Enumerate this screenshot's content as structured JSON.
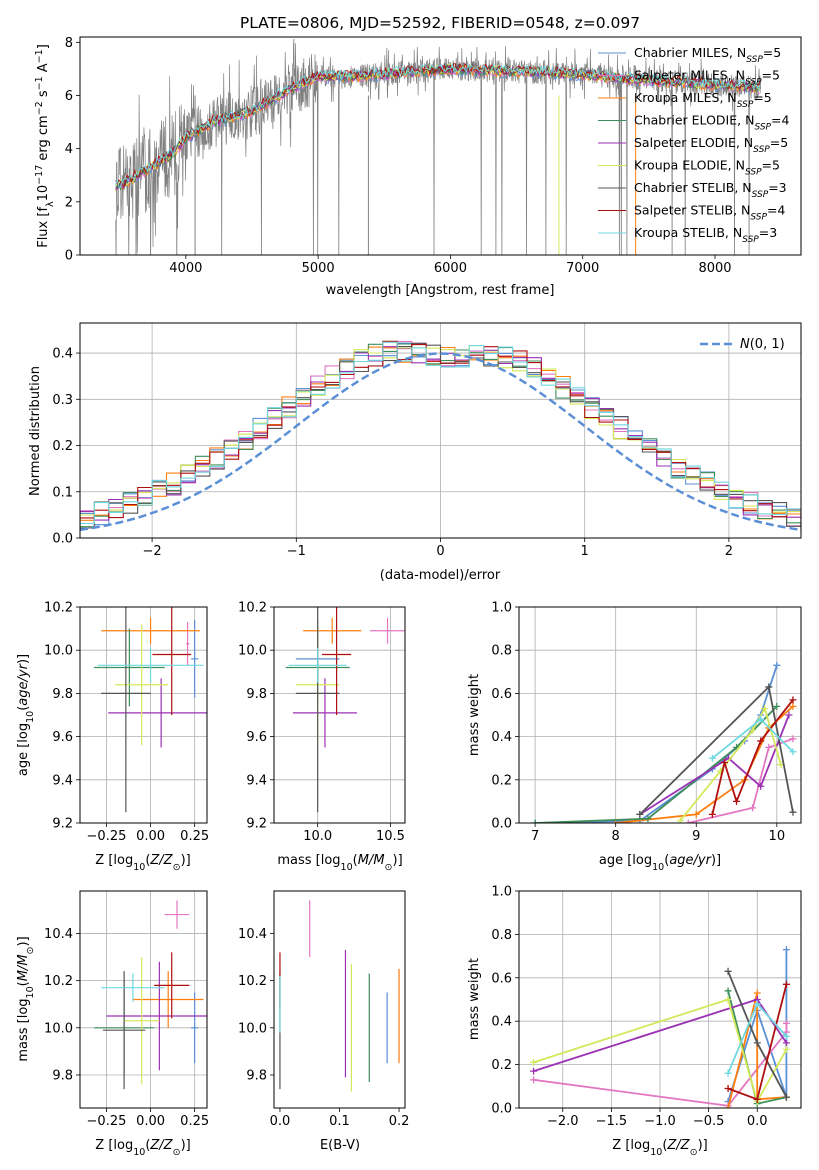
{
  "figure_title": "PLATE=0806, MJD=52592, FIBERID=0548, z=0.097",
  "colors": {
    "Chabrier MILES": "#5b8fd6",
    "Salpeter MILES": "#e377c2",
    "Kroupa MILES": "#ff7f0e",
    "Chabrier ELODIE": "#3f8f5b",
    "Salpeter ELODIE": "#9b30b5",
    "Kroupa ELODIE": "#d4e85a",
    "Chabrier STELIB": "#555555",
    "Salpeter STELIB": "#b00f0f",
    "Kroupa STELIB": "#6fd8e0"
  },
  "chart_data": [
    {
      "id": "spectrum",
      "type": "line",
      "title": "PLATE=0806, MJD=52592, FIBERID=0548, z=0.097",
      "xlabel": "wavelength [Angstrom, rest frame]",
      "ylabel": "Flux [f_λ 10^-17 erg cm^-2 s^-1 A^-1]",
      "xlim": [
        3200,
        8650
      ],
      "ylim": [
        0,
        8.2
      ],
      "xticks": [
        4000,
        5000,
        6000,
        7000,
        8000
      ],
      "yticks": [
        0,
        2,
        4,
        6,
        8
      ],
      "grid": false,
      "legend_position": "right",
      "legend": [
        "Chabrier MILES, N_SSP=5",
        "Salpeter MILES, N_SSP=5",
        "Kroupa MILES, N_SSP=5",
        "Chabrier ELODIE, N_SSP=4",
        "Salpeter ELODIE, N_SSP=5",
        "Kroupa ELODIE, N_SSP=5",
        "Chabrier STELIB, N_SSP=3",
        "Salpeter STELIB, N_SSP=4",
        "Kroupa STELIB, N_SSP=3"
      ],
      "model_curve": {
        "x": [
          3500,
          3700,
          3900,
          4000,
          4200,
          4500,
          4700,
          4900,
          5000,
          5200,
          5500,
          6000,
          6500,
          7000,
          7400,
          8000,
          8350
        ],
        "y": [
          2.6,
          3.2,
          3.8,
          4.4,
          5.0,
          5.4,
          6.0,
          6.5,
          6.7,
          6.7,
          6.8,
          7.0,
          6.9,
          6.8,
          6.6,
          6.4,
          6.3
        ]
      }
    },
    {
      "id": "residuals",
      "type": "line",
      "xlabel": "(data-model)/error",
      "ylabel": "Normed distribution",
      "xlim": [
        -2.5,
        2.5
      ],
      "ylim": [
        0,
        0.465
      ],
      "xticks": [
        -2,
        -1,
        0,
        1,
        2
      ],
      "xtick_labels": [
        "−2",
        "−1",
        "0",
        "1",
        "2"
      ],
      "yticks": [
        0,
        0.1,
        0.2,
        0.3,
        0.4
      ],
      "ytick_labels": [
        "0.0",
        "0.1",
        "0.2",
        "0.3",
        "0.4"
      ],
      "grid": true,
      "legend_position": "top-right",
      "reference": "N(0,1)",
      "bin_width": 0.1
    },
    {
      "id": "age_vs_Z",
      "type": "scatter",
      "xlabel": "Z [log10(Z/Z_sun)]",
      "ylabel": "age [log10(age/yr)]",
      "xlim": [
        -0.4,
        0.32
      ],
      "ylim": [
        9.2,
        10.2
      ],
      "xticks": [
        -0.25,
        0.0,
        0.25
      ],
      "xtick_labels": [
        "−0.25",
        "0.00",
        "0.25"
      ],
      "yticks": [
        9.2,
        9.4,
        9.6,
        9.8,
        10.0,
        10.2
      ],
      "ytick_labels": [
        "9.2",
        "9.4",
        "9.6",
        "9.8",
        "10.0",
        "10.2"
      ],
      "grid": true,
      "points": [
        {
          "model": "Chabrier MILES",
          "x": 0.25,
          "xerr": 0.02,
          "y": 9.96,
          "yerr": 0.18
        },
        {
          "model": "Salpeter MILES",
          "x": 0.21,
          "xerr": 0.01,
          "y": 10.03,
          "yerr": 0.1
        },
        {
          "model": "Kroupa MILES",
          "x": 0.0,
          "xerr": 0.28,
          "y": 10.09,
          "yerr": 0.06
        },
        {
          "model": "Chabrier ELODIE",
          "x": -0.12,
          "xerr": 0.2,
          "y": 9.92,
          "yerr": 0.18
        },
        {
          "model": "Salpeter ELODIE",
          "x": 0.06,
          "xerr": 0.3,
          "y": 9.71,
          "yerr": 0.16
        },
        {
          "model": "Kroupa ELODIE",
          "x": -0.05,
          "xerr": 0.15,
          "y": 9.84,
          "yerr": 0.28
        },
        {
          "model": "Chabrier STELIB",
          "x": -0.14,
          "xerr": 0.14,
          "y": 9.8,
          "yerr": 0.55
        },
        {
          "model": "Salpeter STELIB",
          "x": 0.12,
          "xerr": 0.11,
          "y": 9.98,
          "yerr": 0.28
        },
        {
          "model": "Kroupa STELIB",
          "x": 0.0,
          "xerr": 0.3,
          "y": 9.93,
          "yerr": 0.08
        }
      ]
    },
    {
      "id": "age_vs_mass",
      "type": "scatter",
      "xlabel": "mass [log10(M/M_sun)]",
      "xlim": [
        9.7,
        10.6
      ],
      "ylim": [
        9.2,
        10.2
      ],
      "xticks": [
        10.0,
        10.5
      ],
      "xtick_labels": [
        "10.0",
        "10.5"
      ],
      "yticks": [
        9.2,
        9.4,
        9.6,
        9.8,
        10.0,
        10.2
      ],
      "ytick_labels": [
        "9.2",
        "9.4",
        "9.6",
        "9.8",
        "10.0",
        "10.2"
      ],
      "grid": true,
      "points": [
        {
          "model": "Chabrier MILES",
          "x": 10.0,
          "xerr": 0.15,
          "y": 9.96,
          "yerr": 0.18
        },
        {
          "model": "Salpeter MILES",
          "x": 10.48,
          "xerr": 0.12,
          "y": 10.09,
          "yerr": 0.06
        },
        {
          "model": "Kroupa MILES",
          "x": 10.1,
          "xerr": 0.2,
          "y": 10.09,
          "yerr": 0.06
        },
        {
          "model": "Chabrier ELODIE",
          "x": 10.0,
          "xerr": 0.22,
          "y": 9.92,
          "yerr": 0.18
        },
        {
          "model": "Salpeter ELODIE",
          "x": 10.05,
          "xerr": 0.22,
          "y": 9.71,
          "yerr": 0.16
        },
        {
          "model": "Kroupa ELODIE",
          "x": 10.0,
          "xerr": 0.15,
          "y": 9.84,
          "yerr": 0.28
        },
        {
          "model": "Chabrier STELIB",
          "x": 10.0,
          "xerr": 0.15,
          "y": 9.8,
          "yerr": 0.55
        },
        {
          "model": "Salpeter STELIB",
          "x": 10.13,
          "xerr": 0.1,
          "y": 9.98,
          "yerr": 0.28
        },
        {
          "model": "Kroupa STELIB",
          "x": 10.0,
          "xerr": 0.2,
          "y": 9.93,
          "yerr": 0.08
        }
      ]
    },
    {
      "id": "weight_vs_age",
      "type": "line",
      "xlabel": "age [log10(age/yr)]",
      "ylabel": "mass weight",
      "xlim": [
        6.8,
        10.3
      ],
      "ylim": [
        0,
        1.0
      ],
      "xticks": [
        7,
        8,
        9,
        10
      ],
      "yticks": [
        0,
        0.2,
        0.4,
        0.6,
        0.8,
        1.0
      ],
      "ytick_labels": [
        "0.0",
        "0.2",
        "0.4",
        "0.6",
        "0.8",
        "1.0"
      ],
      "grid": true,
      "series": [
        {
          "model": "Chabrier MILES",
          "x": [
            7.0,
            8.3,
            9.2,
            9.6,
            9.8,
            10.0
          ],
          "y": [
            0.0,
            0.01,
            0.25,
            0.38,
            0.5,
            0.73
          ]
        },
        {
          "model": "Salpeter MILES",
          "x": [
            8.9,
            9.7,
            9.9,
            10.2
          ],
          "y": [
            0.0,
            0.07,
            0.35,
            0.39
          ]
        },
        {
          "model": "Kroupa MILES",
          "x": [
            8.0,
            9.0,
            9.6,
            9.9,
            10.2
          ],
          "y": [
            0.0,
            0.04,
            0.2,
            0.44,
            0.54
          ]
        },
        {
          "model": "Chabrier ELODIE",
          "x": [
            7.0,
            8.4,
            9.5,
            10.0
          ],
          "y": [
            0.0,
            0.02,
            0.35,
            0.54
          ]
        },
        {
          "model": "Salpeter ELODIE",
          "x": [
            8.3,
            9.4,
            9.8,
            10.15
          ],
          "y": [
            0.04,
            0.3,
            0.17,
            0.5
          ]
        },
        {
          "model": "Kroupa ELODIE",
          "x": [
            8.8,
            9.3,
            9.7,
            9.85,
            10.05
          ],
          "y": [
            0.01,
            0.24,
            0.43,
            0.53,
            0.27
          ]
        },
        {
          "model": "Chabrier STELIB",
          "x": [
            8.3,
            9.9,
            10.2
          ],
          "y": [
            0.04,
            0.63,
            0.05
          ]
        },
        {
          "model": "Salpeter STELIB",
          "x": [
            9.2,
            9.35,
            9.5,
            9.8,
            10.2
          ],
          "y": [
            0.04,
            0.28,
            0.1,
            0.38,
            0.57
          ]
        },
        {
          "model": "Kroupa STELIB",
          "x": [
            9.2,
            9.8,
            10.2
          ],
          "y": [
            0.3,
            0.48,
            0.33
          ]
        }
      ]
    },
    {
      "id": "mass_vs_Z",
      "type": "scatter",
      "xlabel": "Z [log10(Z/Z_sun)]",
      "ylabel": "mass [log10(M/M_sun)]",
      "xlim": [
        -0.4,
        0.32
      ],
      "ylim": [
        9.66,
        10.58
      ],
      "xticks": [
        -0.25,
        0.0,
        0.25
      ],
      "xtick_labels": [
        "−0.25",
        "0.00",
        "0.25"
      ],
      "yticks": [
        9.8,
        10.0,
        10.2,
        10.4
      ],
      "ytick_labels": [
        "9.8",
        "10.0",
        "10.2",
        "10.4"
      ],
      "grid": true,
      "points": [
        {
          "model": "Chabrier MILES",
          "x": 0.25,
          "xerr": 0.02,
          "y": 10.0,
          "yerr": 0.15
        },
        {
          "model": "Salpeter MILES",
          "x": 0.15,
          "xerr": 0.07,
          "y": 10.48,
          "yerr": 0.06
        },
        {
          "model": "Kroupa MILES",
          "x": 0.1,
          "xerr": 0.2,
          "y": 10.12,
          "yerr": 0.12
        },
        {
          "model": "Chabrier ELODIE",
          "x": -0.15,
          "xerr": 0.17,
          "y": 10.0,
          "yerr": 0.2
        },
        {
          "model": "Salpeter ELODIE",
          "x": 0.05,
          "xerr": 0.3,
          "y": 10.05,
          "yerr": 0.23
        },
        {
          "model": "Kroupa ELODIE",
          "x": -0.05,
          "xerr": 0.1,
          "y": 10.03,
          "yerr": 0.27
        },
        {
          "model": "Chabrier STELIB",
          "x": -0.15,
          "xerr": 0.12,
          "y": 9.99,
          "yerr": 0.25
        },
        {
          "model": "Salpeter STELIB",
          "x": 0.12,
          "xerr": 0.1,
          "y": 10.18,
          "yerr": 0.14
        },
        {
          "model": "Kroupa STELIB",
          "x": -0.1,
          "xerr": 0.18,
          "y": 10.17,
          "yerr": 0.06
        }
      ]
    },
    {
      "id": "mass_vs_ebv",
      "type": "scatter",
      "xlabel": "E(B-V)",
      "xlim": [
        -0.01,
        0.21
      ],
      "ylim": [
        9.66,
        10.58
      ],
      "xticks": [
        0.0,
        0.1,
        0.2
      ],
      "xtick_labels": [
        "0.0",
        "0.1",
        "0.2"
      ],
      "yticks": [
        9.8,
        10.0,
        10.2,
        10.4
      ],
      "ytick_labels": [
        "9.8",
        "10.0",
        "10.2",
        "10.4"
      ],
      "grid": false,
      "points": [
        {
          "model": "Chabrier MILES",
          "x": 0.18,
          "xerr": 0,
          "y": 10.0,
          "yerr": 0.15
        },
        {
          "model": "Salpeter MILES",
          "x": 0.05,
          "xerr": 0,
          "y": 10.42,
          "yerr": 0.12
        },
        {
          "model": "Kroupa MILES",
          "x": 0.2,
          "xerr": 0,
          "y": 10.05,
          "yerr": 0.2
        },
        {
          "model": "Chabrier ELODIE",
          "x": 0.15,
          "xerr": 0,
          "y": 10.0,
          "yerr": 0.23
        },
        {
          "model": "Salpeter ELODIE",
          "x": 0.11,
          "xerr": 0,
          "y": 10.06,
          "yerr": 0.27
        },
        {
          "model": "Kroupa ELODIE",
          "x": 0.12,
          "xerr": 0,
          "y": 10.0,
          "yerr": 0.27
        },
        {
          "model": "Chabrier STELIB",
          "x": 0.0,
          "xerr": 0,
          "y": 9.99,
          "yerr": 0.25
        },
        {
          "model": "Salpeter STELIB",
          "x": 0.0,
          "xerr": 0,
          "y": 10.2,
          "yerr": 0.12
        },
        {
          "model": "Kroupa STELIB",
          "x": 0.0,
          "xerr": 0,
          "y": 10.1,
          "yerr": 0.12
        }
      ]
    },
    {
      "id": "weight_vs_Z",
      "type": "line",
      "xlabel": "Z [log10(Z/Z_sun)]",
      "ylabel": "mass weight",
      "xlim": [
        -2.45,
        0.45
      ],
      "ylim": [
        0,
        1.0
      ],
      "xticks": [
        -2.0,
        -1.5,
        -1.0,
        -0.5,
        0.0
      ],
      "xtick_labels": [
        "−2.0",
        "−1.5",
        "−1.0",
        "−0.5",
        "0.0"
      ],
      "yticks": [
        0,
        0.2,
        0.4,
        0.6,
        0.8,
        1.0
      ],
      "ytick_labels": [
        "0.0",
        "0.2",
        "0.4",
        "0.6",
        "0.8",
        "1.0"
      ],
      "grid": true,
      "series": [
        {
          "model": "Chabrier MILES",
          "x": [
            -0.3,
            0.0,
            0.3,
            0.3
          ],
          "y": [
            0.03,
            0.45,
            0.05,
            0.73
          ]
        },
        {
          "model": "Salpeter MILES",
          "x": [
            -2.3,
            -0.3,
            0.3,
            0.3
          ],
          "y": [
            0.13,
            0.01,
            0.35,
            0.39
          ]
        },
        {
          "model": "Kroupa MILES",
          "x": [
            -0.3,
            0.0,
            0.0,
            0.3
          ],
          "y": [
            0.0,
            0.53,
            0.04,
            0.05
          ]
        },
        {
          "model": "Chabrier ELODIE",
          "x": [
            -0.3,
            0.0,
            0.3
          ],
          "y": [
            0.54,
            0.02,
            0.05
          ]
        },
        {
          "model": "Salpeter ELODIE",
          "x": [
            -2.3,
            0.0,
            0.3
          ],
          "y": [
            0.17,
            0.5,
            0.3
          ]
        },
        {
          "model": "Kroupa ELODIE",
          "x": [
            -2.3,
            -0.3,
            0.0,
            0.3
          ],
          "y": [
            0.21,
            0.5,
            0.03,
            0.27
          ]
        },
        {
          "model": "Chabrier STELIB",
          "x": [
            -0.3,
            0.0,
            0.3
          ],
          "y": [
            0.63,
            0.3,
            0.05
          ]
        },
        {
          "model": "Salpeter STELIB",
          "x": [
            -0.3,
            0.0,
            0.3
          ],
          "y": [
            0.09,
            0.04,
            0.57
          ]
        },
        {
          "model": "Kroupa STELIB",
          "x": [
            -0.3,
            0.0,
            0.3
          ],
          "y": [
            0.16,
            0.48,
            0.33
          ]
        }
      ]
    }
  ]
}
